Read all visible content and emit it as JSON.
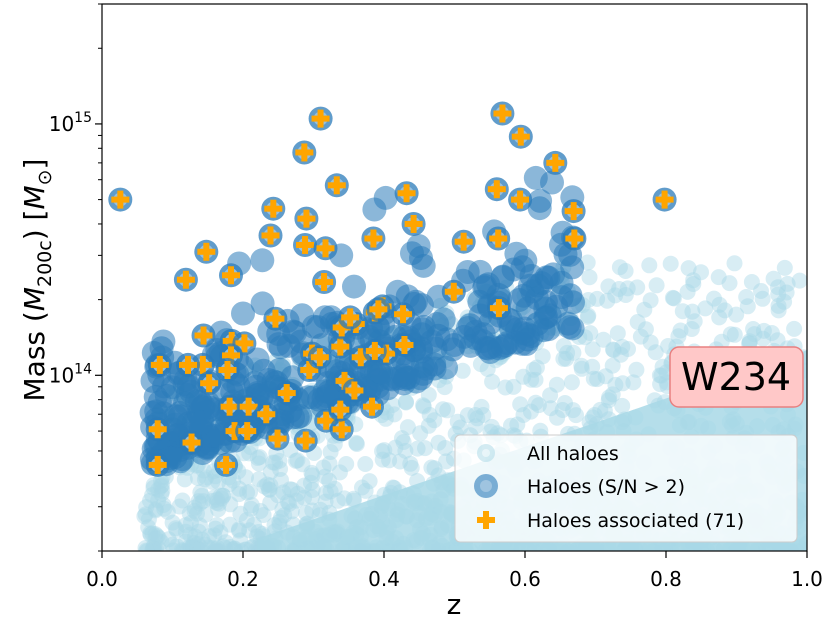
{
  "chart_data": {
    "type": "scatter",
    "xlabel": "z",
    "ylabel": "Mass (M200c) [M⊙]",
    "ylabel_parts": {
      "main": "Mass (",
      "M": "M",
      "sub": "200c",
      "close": ") [",
      "unit": "M",
      "unit_sub": "⊙",
      "end": "]"
    },
    "xlim": [
      0.0,
      1.0
    ],
    "ylim": [
      20000000000000.0,
      3000000000000000.0
    ],
    "yscale": "log",
    "x_ticks": [
      {
        "value": 0.0,
        "label": "0.0"
      },
      {
        "value": 0.2,
        "label": "0.2"
      },
      {
        "value": 0.4,
        "label": "0.4"
      },
      {
        "value": 0.6,
        "label": "0.6"
      },
      {
        "value": 0.8,
        "label": "0.8"
      },
      {
        "value": 1.0,
        "label": "1.0"
      }
    ],
    "y_ticks": [
      {
        "value": 100000000000000.0,
        "base": "10",
        "exp": "14"
      },
      {
        "value": 1000000000000000.0,
        "base": "10",
        "exp": "15"
      }
    ],
    "annotation": "W234",
    "colors": {
      "all": "#a8d8e6",
      "sn": "#2b7bba",
      "assoc": "#ffa500",
      "badge_fill": "#ffc8c8",
      "badge_stroke": "#e88080"
    },
    "legend": {
      "placement": "lower-right",
      "entries": [
        "All haloes",
        "Haloes (S/N > 2)",
        "Haloes associated (71)"
      ]
    },
    "series": [
      {
        "name": "Haloes associated (71)",
        "points": [
          [
            0.026,
            500000000000000.0
          ],
          [
            0.119,
            240000000000000.0
          ],
          [
            0.148,
            310000000000000.0
          ],
          [
            0.183,
            250000000000000.0
          ],
          [
            0.243,
            460000000000000.0
          ],
          [
            0.239,
            360000000000000.0
          ],
          [
            0.29,
            420000000000000.0
          ],
          [
            0.288,
            330000000000000.0
          ],
          [
            0.317,
            320000000000000.0
          ],
          [
            0.31,
            1050000000000000.0
          ],
          [
            0.287,
            770000000000000.0
          ],
          [
            0.333,
            570000000000000.0
          ],
          [
            0.432,
            530000000000000.0
          ],
          [
            0.385,
            350000000000000.0
          ],
          [
            0.442,
            400000000000000.0
          ],
          [
            0.513,
            340000000000000.0
          ],
          [
            0.562,
            350000000000000.0
          ],
          [
            0.568,
            1100000000000000.0
          ],
          [
            0.594,
            890000000000000.0
          ],
          [
            0.643,
            700000000000000.0
          ],
          [
            0.56,
            550000000000000.0
          ],
          [
            0.593,
            500000000000000.0
          ],
          [
            0.669,
            450000000000000.0
          ],
          [
            0.67,
            350000000000000.0
          ],
          [
            0.798,
            500000000000000.0
          ],
          [
            0.315,
            235000000000000.0
          ],
          [
            0.246,
            168000000000000.0
          ],
          [
            0.144,
            144000000000000.0
          ],
          [
            0.184,
            137000000000000.0
          ],
          [
            0.202,
            134000000000000.0
          ],
          [
            0.183,
            120000000000000.0
          ],
          [
            0.143,
            110000000000000.0
          ],
          [
            0.082,
            110000000000000.0
          ],
          [
            0.122,
            110000000000000.0
          ],
          [
            0.178,
            105000000000000.0
          ],
          [
            0.152,
            93000000000000.0
          ],
          [
            0.181,
            75000000000000.0
          ],
          [
            0.208,
            75000000000000.0
          ],
          [
            0.079,
            61000000000000.0
          ],
          [
            0.127,
            54000000000000.0
          ],
          [
            0.188,
            60000000000000.0
          ],
          [
            0.206,
            60000000000000.0
          ],
          [
            0.079,
            44000000000000.0
          ],
          [
            0.176,
            44000000000000.0
          ],
          [
            0.249,
            56000000000000.0
          ],
          [
            0.289,
            55000000000000.0
          ],
          [
            0.318,
            66000000000000.0
          ],
          [
            0.34,
            61000000000000.0
          ],
          [
            0.262,
            85000000000000.0
          ],
          [
            0.338,
            73000000000000.0
          ],
          [
            0.383,
            75000000000000.0
          ],
          [
            0.298,
            122000000000000.0
          ],
          [
            0.294,
            105000000000000.0
          ],
          [
            0.338,
            130000000000000.0
          ],
          [
            0.36,
            160000000000000.0
          ],
          [
            0.34,
            155000000000000.0
          ],
          [
            0.387,
            178000000000000.0
          ],
          [
            0.398,
            188000000000000.0
          ],
          [
            0.392,
            183000000000000.0
          ],
          [
            0.367,
            118000000000000.0
          ],
          [
            0.403,
            122000000000000.0
          ],
          [
            0.427,
            175000000000000.0
          ],
          [
            0.429,
            132000000000000.0
          ],
          [
            0.499,
            215000000000000.0
          ],
          [
            0.563,
            185000000000000.0
          ],
          [
            0.344,
            95000000000000.0
          ],
          [
            0.358,
            87000000000000.0
          ],
          [
            0.352,
            170000000000000.0
          ],
          [
            0.387,
            125000000000000.0
          ],
          [
            0.309,
            118000000000000.0
          ],
          [
            0.233,
            70000000000000.0
          ]
        ]
      }
    ]
  }
}
